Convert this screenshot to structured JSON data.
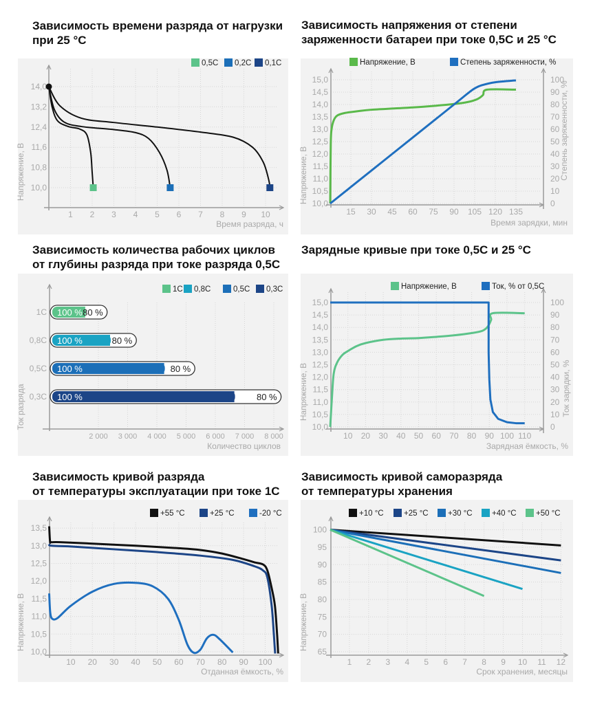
{
  "chart_data": [
    {
      "type": "line",
      "title": "Зависимость времени разряда от нагрузки\nпри 25 °C",
      "xlabel": "Время разряда, ч",
      "ylabel": "Напряжение, В",
      "xticks": [
        "1",
        "2",
        "3",
        "4",
        "5",
        "6",
        "7",
        "8",
        "9",
        "10"
      ],
      "yticks": [
        "10,0",
        "10,8",
        "11,6",
        "12,4",
        "13,2",
        "14,0"
      ],
      "grid": true,
      "legend_position": "top-right",
      "series": [
        {
          "name": "0,5C",
          "color": "#5cc38a",
          "line_color": "#111111",
          "points": [
            [
              0,
              14.0
            ],
            [
              0.15,
              13.2
            ],
            [
              0.4,
              12.65
            ],
            [
              0.9,
              12.42
            ],
            [
              1.4,
              12.33
            ],
            [
              1.75,
              12.1
            ],
            [
              1.93,
              11.4
            ],
            [
              2.0,
              10.6
            ],
            [
              2.05,
              10.0
            ]
          ]
        },
        {
          "name": "0,2C",
          "color": "#1c6fb8",
          "line_color": "#111111",
          "points": [
            [
              0,
              14.0
            ],
            [
              0.25,
              13.1
            ],
            [
              0.7,
              12.6
            ],
            [
              1.5,
              12.42
            ],
            [
              3,
              12.3
            ],
            [
              4,
              12.18
            ],
            [
              4.6,
              11.95
            ],
            [
              5.1,
              11.4
            ],
            [
              5.45,
              10.7
            ],
            [
              5.6,
              10.0
            ]
          ]
        },
        {
          "name": "0,1C",
          "color": "#1c4587",
          "line_color": "#111111",
          "points": [
            [
              0,
              14.0
            ],
            [
              0.5,
              13.25
            ],
            [
              1.5,
              12.75
            ],
            [
              3,
              12.58
            ],
            [
              5,
              12.4
            ],
            [
              7,
              12.2
            ],
            [
              8.5,
              12.0
            ],
            [
              9.4,
              11.6
            ],
            [
              9.9,
              11.0
            ],
            [
              10.15,
              10.3
            ],
            [
              10.2,
              10.0
            ]
          ]
        }
      ]
    },
    {
      "type": "line",
      "title": "Зависимость напряжения от степени\nзаряженности батареи при токе 0,5С и 25 °C",
      "xlabel": "Время зарядки, мин",
      "ylabel": "Напряжение, В",
      "y2label": "Степень заряженности, %",
      "xticks": [
        "15",
        "30",
        "45",
        "60",
        "75",
        "90",
        "105",
        "120",
        "135"
      ],
      "yticks": [
        "10,0",
        "10,5",
        "11,0",
        "11,5",
        "12,0",
        "12,5",
        "13,0",
        "13,5",
        "14,0",
        "14,5",
        "15,0"
      ],
      "y2ticks": [
        "0",
        "10",
        "20",
        "30",
        "40",
        "50",
        "60",
        "70",
        "80",
        "90",
        "100"
      ],
      "grid": true,
      "legend_position": "top",
      "series": [
        {
          "name": "Напряжение, В",
          "color": "#5ab94a",
          "points": [
            [
              0,
              10.0
            ],
            [
              0.4,
              12.4
            ],
            [
              1,
              13.0
            ],
            [
              2.5,
              13.35
            ],
            [
              5,
              13.55
            ],
            [
              10,
              13.65
            ],
            [
              20,
              13.73
            ],
            [
              30,
              13.79
            ],
            [
              50,
              13.85
            ],
            [
              70,
              13.92
            ],
            [
              90,
              14.02
            ],
            [
              100,
              14.1
            ],
            [
              107,
              14.22
            ],
            [
              111,
              14.38
            ],
            [
              114,
              14.6
            ],
            [
              135,
              14.6
            ]
          ]
        },
        {
          "name": "Степень заряженности, %",
          "color": "#1f6fbf",
          "axis": "y2",
          "points": [
            [
              0,
              0
            ],
            [
              45,
              40
            ],
            [
              90,
              80
            ],
            [
              100,
              89
            ],
            [
              105,
              93
            ],
            [
              110,
              95.5
            ],
            [
              120,
              98
            ],
            [
              135,
              99.5
            ]
          ]
        }
      ]
    },
    {
      "type": "bar",
      "orientation": "horizontal",
      "title": "Зависимость количества рабочих циклов\nот глубины разряда при токе разряда 0,5С",
      "xlabel": "Количество циклов",
      "ylabel": "Ток разряда",
      "xticks": [
        "2 000",
        "3 000",
        "4 000",
        "5 000",
        "6 000",
        "7 000",
        "8 000"
      ],
      "categories": [
        "1C",
        "0,8C",
        "0,5C",
        "0,3C"
      ],
      "colors": [
        "#5cc38a",
        "#1aa3c3",
        "#1c6fb8",
        "#1c4587"
      ],
      "legend": [
        "1C",
        "0,8C",
        "0,5C",
        "0,3C"
      ],
      "legend_position": "top-right",
      "grid": true,
      "series": [
        {
          "name": "100 %",
          "values": [
            1550,
            2400,
            4250,
            6650
          ]
        },
        {
          "name": "80 %",
          "values": [
            2300,
            3300,
            5300,
            8250
          ]
        }
      ]
    },
    {
      "type": "line",
      "title": "Зарядные кривые при токе 0,5С и 25 °C",
      "xlabel": "Зарядная ёмкость, %",
      "ylabel": "Напряжение, В",
      "y2label": "Ток зарядки, %",
      "xticks": [
        "10",
        "20",
        "30",
        "40",
        "50",
        "60",
        "70",
        "80",
        "90",
        "100",
        "110"
      ],
      "yticks": [
        "10,0",
        "10,5",
        "11,0",
        "11,5",
        "12,0",
        "12,5",
        "13,0",
        "13,5",
        "14,0",
        "14,5",
        "15,0"
      ],
      "y2ticks": [
        "0",
        "10",
        "20",
        "30",
        "40",
        "50",
        "60",
        "70",
        "80",
        "90",
        "100"
      ],
      "grid": true,
      "legend_position": "top",
      "series": [
        {
          "name": "Напряжение, В",
          "color": "#5cc38a",
          "points": [
            [
              0,
              10.0
            ],
            [
              1,
              11.2
            ],
            [
              2,
              12.15
            ],
            [
              4,
              12.6
            ],
            [
              7,
              12.9
            ],
            [
              10,
              13.05
            ],
            [
              15,
              13.25
            ],
            [
              20,
              13.37
            ],
            [
              30,
              13.5
            ],
            [
              40,
              13.55
            ],
            [
              50,
              13.57
            ],
            [
              60,
              13.62
            ],
            [
              70,
              13.68
            ],
            [
              80,
              13.77
            ],
            [
              86,
              13.86
            ],
            [
              89,
              14.02
            ],
            [
              91,
              14.3
            ],
            [
              92,
              14.57
            ],
            [
              110,
              14.57
            ]
          ]
        },
        {
          "name": "Ток,  % от 0,5С",
          "color": "#1f6fbf",
          "axis": "y2",
          "sharp": true,
          "points": [
            [
              0,
              100
            ],
            [
              89.6,
              100
            ],
            [
              89.6,
              60
            ],
            [
              90,
              38
            ],
            [
              90.6,
              22
            ],
            [
              92,
              12
            ],
            [
              95,
              6.5
            ],
            [
              100,
              3.8
            ],
            [
              105,
              3
            ],
            [
              110,
              3
            ]
          ]
        }
      ]
    },
    {
      "type": "line",
      "title": "Зависимость кривой разряда\nот температуры эксплуатации при токе 1С",
      "xlabel": "Отданная ёмкость, %",
      "ylabel": "Напряжение, В",
      "xticks": [
        "10",
        "20",
        "30",
        "40",
        "50",
        "60",
        "70",
        "80",
        "90",
        "100"
      ],
      "yticks": [
        "10,0",
        "10,5",
        "11,0",
        "11,5",
        "12,0",
        "12,5",
        "13,0",
        "13,5"
      ],
      "grid": true,
      "legend_position": "top-right",
      "series": [
        {
          "name": "+55 °C",
          "color": "#111111",
          "points": [
            [
              0,
              13.55
            ],
            [
              0.4,
              13.12
            ],
            [
              1,
              13.1
            ],
            [
              5,
              13.1
            ],
            [
              20,
              13.06
            ],
            [
              40,
              13.0
            ],
            [
              60,
              12.93
            ],
            [
              70,
              12.88
            ],
            [
              80,
              12.78
            ],
            [
              90,
              12.62
            ],
            [
              95,
              12.53
            ],
            [
              99,
              12.47
            ],
            [
              101,
              12.3
            ],
            [
              103,
              11.8
            ],
            [
              104.5,
              11.3
            ],
            [
              105.5,
              10.5
            ],
            [
              106,
              9.95
            ]
          ]
        },
        {
          "name": "+25 °C",
          "color": "#1c4587",
          "points": [
            [
              0,
              13.05
            ],
            [
              1,
              13.0
            ],
            [
              10,
              12.98
            ],
            [
              30,
              12.9
            ],
            [
              50,
              12.82
            ],
            [
              70,
              12.72
            ],
            [
              85,
              12.6
            ],
            [
              95,
              12.42
            ],
            [
              99,
              12.3
            ],
            [
              101,
              12.1
            ],
            [
              103,
              11.3
            ],
            [
              104,
              10.5
            ],
            [
              104.6,
              9.95
            ]
          ]
        },
        {
          "name": "-20 °C",
          "color": "#1f6fbf",
          "points": [
            [
              0,
              11.65
            ],
            [
              0.5,
              11.1
            ],
            [
              1.5,
              10.93
            ],
            [
              4,
              10.96
            ],
            [
              10,
              11.3
            ],
            [
              20,
              11.7
            ],
            [
              30,
              11.92
            ],
            [
              40,
              11.95
            ],
            [
              48,
              11.85
            ],
            [
              55,
              11.5
            ],
            [
              60,
              10.9
            ],
            [
              64,
              10.2
            ],
            [
              67,
              9.97
            ],
            [
              70,
              10.06
            ],
            [
              73,
              10.38
            ],
            [
              76,
              10.48
            ],
            [
              79,
              10.35
            ],
            [
              85,
              9.98
            ]
          ]
        }
      ]
    },
    {
      "type": "line",
      "title": "Зависимость кривой саморазряда\nот температуры хранения",
      "xlabel": "Срок хранения, месяцы",
      "ylabel": "Напряжение, В",
      "xticks": [
        "1",
        "2",
        "3",
        "4",
        "5",
        "6",
        "7",
        "8",
        "9",
        "10",
        "11",
        "12"
      ],
      "yticks": [
        "65",
        "70",
        "75",
        "80",
        "85",
        "90",
        "95",
        "100"
      ],
      "grid": true,
      "legend_position": "top",
      "series": [
        {
          "name": "+10 °C",
          "color": "#111111",
          "points": [
            [
              0,
              100
            ],
            [
              12,
              95.5
            ]
          ]
        },
        {
          "name": "+25 °C",
          "color": "#1c4587",
          "points": [
            [
              0,
              100
            ],
            [
              12,
              91.2
            ]
          ]
        },
        {
          "name": "+30 °C",
          "color": "#1c6fb8",
          "points": [
            [
              0,
              100
            ],
            [
              12,
              87.6
            ]
          ]
        },
        {
          "name": "+40 °C",
          "color": "#1aa3c3",
          "points": [
            [
              0,
              100
            ],
            [
              10,
              83
            ]
          ]
        },
        {
          "name": "+50 °C",
          "color": "#5cc38a",
          "points": [
            [
              0,
              100
            ],
            [
              8,
              81
            ]
          ]
        }
      ]
    }
  ]
}
